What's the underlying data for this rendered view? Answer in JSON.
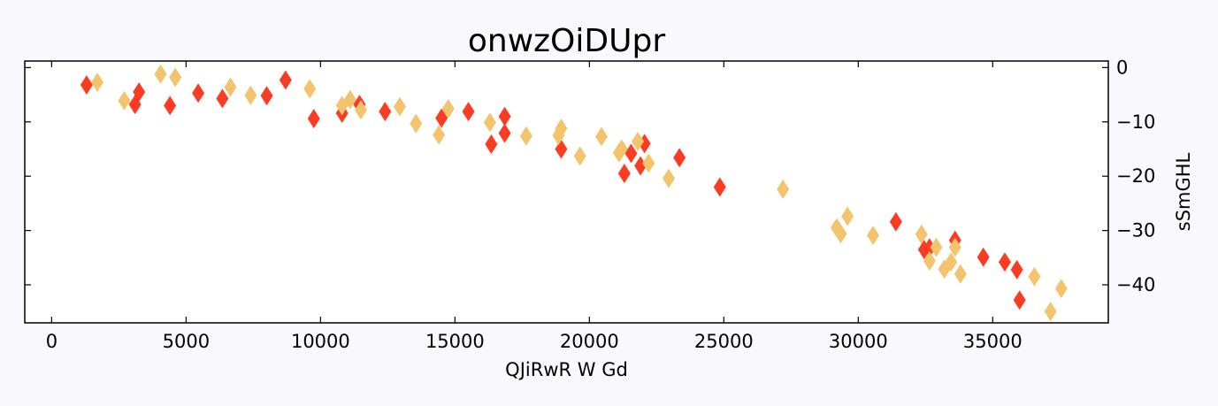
{
  "chart_data": {
    "type": "scatter",
    "title": "onwzOiDUpr",
    "xlabel": "QJiRwR W Gd",
    "ylabel": "sSmGHL",
    "xlim": [
      -1000,
      39300
    ],
    "ylim": [
      -47,
      1.2
    ],
    "xticks": [
      0,
      5000,
      10000,
      15000,
      20000,
      25000,
      30000,
      35000
    ],
    "xtick_labels": [
      "0",
      "5000",
      "10000",
      "15000",
      "20000",
      "25000",
      "30000",
      "35000"
    ],
    "yticks": [
      0,
      -10,
      -20,
      -30,
      -40
    ],
    "ytick_labels": [
      "0",
      "−10",
      "−20",
      "−30",
      "−40"
    ],
    "y_axis_side": "right",
    "grid": false,
    "marker": "thin_diamond",
    "series": [
      {
        "color": "#f93c22",
        "points": [
          [
            1300,
            -3.2
          ],
          [
            3100,
            -6.8
          ],
          [
            3250,
            -4.5
          ],
          [
            4400,
            -7.0
          ],
          [
            5450,
            -4.7
          ],
          [
            6350,
            -5.7
          ],
          [
            8000,
            -5.2
          ],
          [
            8700,
            -2.3
          ],
          [
            9750,
            -9.4
          ],
          [
            10800,
            -8.4
          ],
          [
            11450,
            -6.8
          ],
          [
            12400,
            -8.1
          ],
          [
            14500,
            -9.3
          ],
          [
            15500,
            -8.1
          ],
          [
            16350,
            -14.1
          ],
          [
            16850,
            -9.0
          ],
          [
            16850,
            -12.1
          ],
          [
            18950,
            -15.0
          ],
          [
            21300,
            -19.5
          ],
          [
            21550,
            -15.8
          ],
          [
            21900,
            -18.1
          ],
          [
            22050,
            -14.0
          ],
          [
            23350,
            -16.6
          ],
          [
            24850,
            -22.0
          ],
          [
            31400,
            -28.4
          ],
          [
            32450,
            -33.5
          ],
          [
            32650,
            -33.2
          ],
          [
            33600,
            -31.8
          ],
          [
            34650,
            -34.9
          ],
          [
            35450,
            -35.8
          ],
          [
            35900,
            -37.2
          ],
          [
            36000,
            -42.8
          ]
        ]
      },
      {
        "color": "#f2c46e",
        "points": [
          [
            1700,
            -2.7
          ],
          [
            2700,
            -6.1
          ],
          [
            4050,
            -1.2
          ],
          [
            4600,
            -1.8
          ],
          [
            6650,
            -3.6
          ],
          [
            7400,
            -5.1
          ],
          [
            9600,
            -3.9
          ],
          [
            10800,
            -7.0
          ],
          [
            11100,
            -5.9
          ],
          [
            11500,
            -7.8
          ],
          [
            12950,
            -7.2
          ],
          [
            13550,
            -10.3
          ],
          [
            14400,
            -12.4
          ],
          [
            14750,
            -7.6
          ],
          [
            16300,
            -10.1
          ],
          [
            17650,
            -12.6
          ],
          [
            18850,
            -12.5
          ],
          [
            18950,
            -11.2
          ],
          [
            19650,
            -16.3
          ],
          [
            20450,
            -12.7
          ],
          [
            21100,
            -15.7
          ],
          [
            21200,
            -15.0
          ],
          [
            21800,
            -13.6
          ],
          [
            22200,
            -17.6
          ],
          [
            22950,
            -20.4
          ],
          [
            27200,
            -22.4
          ],
          [
            29200,
            -29.5
          ],
          [
            29350,
            -30.6
          ],
          [
            29600,
            -27.4
          ],
          [
            30550,
            -30.9
          ],
          [
            32350,
            -30.7
          ],
          [
            32650,
            -35.6
          ],
          [
            32900,
            -33.1
          ],
          [
            33200,
            -37.1
          ],
          [
            33450,
            -35.8
          ],
          [
            33600,
            -33.1
          ],
          [
            33800,
            -38.0
          ],
          [
            36550,
            -38.5
          ],
          [
            37150,
            -44.9
          ],
          [
            37550,
            -40.7
          ]
        ]
      }
    ]
  }
}
